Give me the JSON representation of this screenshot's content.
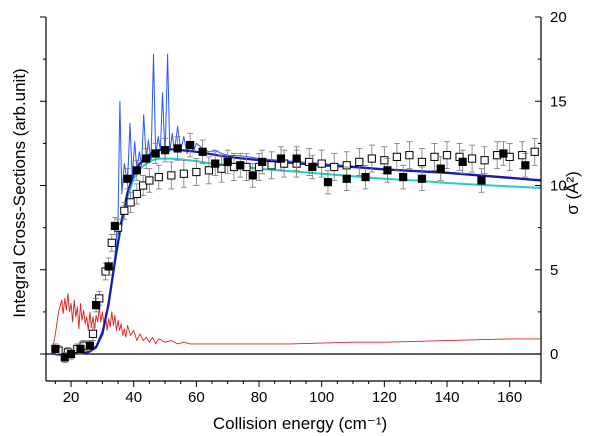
{
  "chart_data": {
    "type": "scatter",
    "xlabel": "Collision energy (cm⁻¹)",
    "ylabel_left": "Integral Cross-Sections (arb.unit)",
    "ylabel_right": "σ (Å²)",
    "xlim": [
      12,
      170
    ],
    "ylim_right": [
      -1.6,
      20
    ],
    "x_ticks": [
      "20",
      "40",
      "60",
      "80",
      "100",
      "120",
      "140",
      "160"
    ],
    "right_ticks": [
      "0",
      "5",
      "10",
      "15",
      "20"
    ],
    "colors": {
      "theory_dark": "#1a1aa8",
      "theory_light": "#2a55ff",
      "theory_cyan": "#22cccc",
      "theory_red": "#e02020",
      "exp_filled": "#000000",
      "exp_open": "#000000",
      "error_bar": "#777777"
    },
    "series": [
      {
        "name": "",
        "style": "filled-square",
        "x": [
          15,
          18,
          20,
          23,
          26,
          28,
          32,
          34,
          38,
          41,
          44,
          47,
          50,
          54,
          58,
          62,
          66,
          70,
          74,
          78,
          81,
          87,
          92,
          97,
          102,
          108,
          114,
          121,
          126,
          132,
          138,
          145,
          151,
          158,
          165
        ],
        "y": [
          0.3,
          -0.2,
          0,
          0.3,
          0.5,
          2.9,
          5.2,
          7.6,
          10.4,
          10.9,
          11.6,
          11.9,
          12.1,
          12.2,
          12.4,
          12.0,
          11.3,
          11.4,
          11.2,
          10.6,
          11.4,
          11.6,
          11.6,
          11.1,
          10.2,
          10.4,
          10.5,
          10.9,
          10.5,
          10.4,
          11.0,
          11.4,
          10.3,
          11.9,
          11.2
        ],
        "yerr": [
          0.3,
          0.3,
          0.3,
          0.3,
          0.3,
          0.4,
          0.5,
          0.5,
          0.6,
          0.6,
          0.6,
          0.6,
          0.7,
          0.7,
          0.7,
          0.7,
          0.7,
          0.7,
          0.7,
          0.7,
          0.7,
          0.7,
          0.7,
          0.7,
          0.7,
          0.7,
          0.7,
          0.7,
          0.7,
          0.7,
          0.7,
          0.7,
          0.7,
          0.7,
          0.7
        ]
      },
      {
        "name": "",
        "style": "open-square",
        "x": [
          16,
          19,
          22,
          24,
          27,
          29,
          31,
          33,
          35,
          37,
          39,
          41,
          43,
          45,
          48,
          52,
          56,
          60,
          64,
          68,
          72,
          76,
          80,
          84,
          88,
          92,
          96,
          100,
          104,
          108,
          112,
          116,
          120,
          124,
          128,
          132,
          136,
          140,
          144,
          148,
          152,
          156,
          160,
          164,
          168
        ],
        "y": [
          0.2,
          0.1,
          0.3,
          0.5,
          1.2,
          3.3,
          4.9,
          6.6,
          7.5,
          8.5,
          9.0,
          9.5,
          10.0,
          10.3,
          10.5,
          10.6,
          10.7,
          10.8,
          10.9,
          11.0,
          11.1,
          11.1,
          11.1,
          11.2,
          11.3,
          11.3,
          11.4,
          11.3,
          11.1,
          11.2,
          11.4,
          11.6,
          11.5,
          11.7,
          11.8,
          11.4,
          11.7,
          11.8,
          11.7,
          11.6,
          11.5,
          11.8,
          11.7,
          11.8,
          12.0
        ],
        "yerr": [
          0.3,
          0.3,
          0.3,
          0.3,
          0.4,
          0.4,
          0.5,
          0.5,
          0.5,
          0.5,
          0.6,
          0.6,
          0.6,
          0.7,
          0.7,
          0.8,
          0.8,
          0.8,
          0.8,
          0.8,
          0.8,
          0.8,
          0.8,
          0.8,
          0.8,
          0.8,
          0.8,
          0.8,
          0.8,
          0.8,
          0.8,
          0.8,
          0.8,
          0.8,
          0.8,
          0.8,
          0.8,
          0.8,
          0.8,
          0.8,
          0.8,
          0.8,
          0.8,
          0.8,
          0.8
        ]
      },
      {
        "name": "",
        "style": "line-dark-blue",
        "x": [
          14,
          20,
          24,
          26,
          28,
          30,
          32,
          34,
          36,
          38,
          40,
          42,
          44,
          46,
          48,
          50,
          52,
          55,
          60,
          65,
          70,
          80,
          90,
          100,
          110,
          120,
          130,
          140,
          150,
          160,
          170
        ],
        "y": [
          0,
          0,
          0.05,
          0.15,
          0.4,
          1.2,
          3.0,
          5.5,
          7.8,
          9.6,
          10.7,
          11.3,
          11.7,
          11.95,
          12.1,
          12.15,
          12.15,
          12.1,
          12.0,
          11.85,
          11.7,
          11.5,
          11.35,
          11.2,
          11.1,
          10.95,
          10.85,
          10.75,
          10.6,
          10.45,
          10.3
        ]
      },
      {
        "name": "",
        "style": "line-cyan",
        "x": [
          14,
          20,
          24,
          26,
          28,
          30,
          32,
          34,
          36,
          38,
          40,
          42,
          44,
          46,
          48,
          50,
          52,
          55,
          60,
          65,
          70,
          80,
          90,
          100,
          110,
          120,
          130,
          140,
          150,
          160,
          170
        ],
        "y": [
          0,
          0,
          0.05,
          0.15,
          0.4,
          1.2,
          3.0,
          5.4,
          7.6,
          9.3,
          10.4,
          11.0,
          11.3,
          11.5,
          11.6,
          11.6,
          11.6,
          11.55,
          11.45,
          11.3,
          11.2,
          11.0,
          10.85,
          10.7,
          10.55,
          10.4,
          10.3,
          10.15,
          10.05,
          9.95,
          9.85
        ]
      },
      {
        "name": "",
        "style": "line-blue-resonant",
        "x": [
          14,
          20,
          24,
          26,
          28,
          30,
          31,
          32,
          33,
          34,
          35,
          35.6,
          36.2,
          37,
          38,
          38.8,
          39.5,
          40.3,
          41,
          41.8,
          42.5,
          43.2,
          44,
          44.7,
          45.5,
          46.3,
          47,
          47.8,
          48.5,
          49.2,
          50,
          50.8,
          51.5,
          52.3,
          53,
          54,
          55,
          56,
          57,
          58,
          59,
          60,
          62,
          64,
          66,
          68,
          70,
          75,
          80,
          90,
          100,
          110,
          120,
          130,
          140,
          150,
          160,
          170
        ],
        "y": [
          0,
          0,
          0.05,
          0.2,
          0.5,
          1.4,
          2.2,
          3.3,
          4.5,
          5.8,
          8.2,
          15.0,
          9.5,
          11.3,
          10.2,
          13.7,
          10.5,
          12.6,
          10.9,
          12.0,
          11.2,
          14.2,
          11.5,
          12.7,
          11.4,
          17.8,
          11.8,
          12.9,
          12.1,
          15.5,
          11.7,
          17.8,
          12.0,
          13.1,
          12.0,
          13.5,
          12.1,
          12.9,
          11.9,
          12.6,
          12.0,
          12.5,
          12.2,
          12.0,
          12.1,
          11.9,
          11.8,
          11.75,
          11.6,
          11.45,
          11.3,
          11.15,
          11.0,
          10.9,
          10.8,
          10.65,
          10.5,
          10.35
        ]
      },
      {
        "name": "",
        "style": "line-red",
        "x": [
          14,
          15,
          16,
          17,
          17.5,
          18,
          18.5,
          19,
          19.5,
          20,
          20.5,
          21,
          21.5,
          22,
          22.5,
          23,
          23.5,
          24,
          24.5,
          25,
          25.5,
          26,
          26.5,
          27,
          27.5,
          28,
          28.5,
          29,
          29.5,
          30,
          30.5,
          31,
          31.5,
          32,
          32.5,
          33,
          33.5,
          34,
          34.5,
          35,
          35.5,
          36,
          36.5,
          37,
          37.5,
          38,
          39,
          40,
          41,
          42,
          43,
          44,
          45,
          46,
          47,
          48,
          50,
          52,
          54,
          56,
          58,
          60,
          65,
          70,
          80,
          90,
          100,
          110,
          120,
          130,
          140,
          150,
          160,
          170
        ],
        "y": [
          0.2,
          1.2,
          2.5,
          3.2,
          2.4,
          3.3,
          2.6,
          3.6,
          2.5,
          3.0,
          1.9,
          3.2,
          2.2,
          2.8,
          1.5,
          3.0,
          2.0,
          2.6,
          1.8,
          2.2,
          1.4,
          2.5,
          1.6,
          2.2,
          1.5,
          2.3,
          1.9,
          2.8,
          1.9,
          2.5,
          1.7,
          2.4,
          1.4,
          2.1,
          1.6,
          2.5,
          1.7,
          2.3,
          1.4,
          2.0,
          1.4,
          1.8,
          1.1,
          1.5,
          1.0,
          1.7,
          1.1,
          1.4,
          0.8,
          1.2,
          0.8,
          1.0,
          0.7,
          1.0,
          0.6,
          0.9,
          0.7,
          0.8,
          0.6,
          0.7,
          0.6,
          0.6,
          0.6,
          0.6,
          0.6,
          0.6,
          0.65,
          0.7,
          0.7,
          0.75,
          0.8,
          0.85,
          0.9,
          0.9
        ]
      }
    ]
  }
}
